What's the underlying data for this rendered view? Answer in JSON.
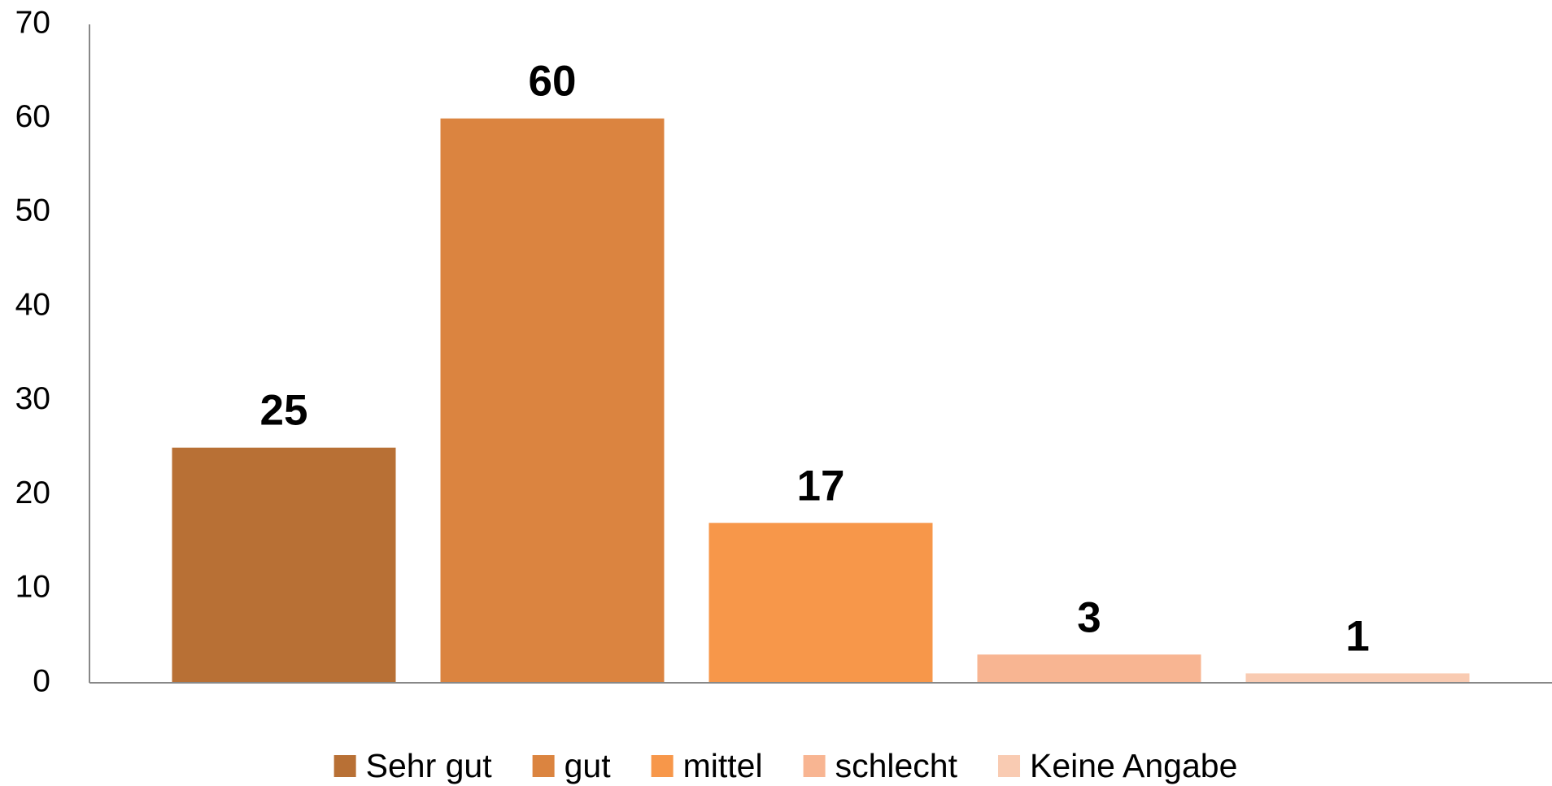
{
  "chart_data": {
    "type": "bar",
    "categories": [
      "Sehr gut",
      "gut",
      "mittel",
      "schlecht",
      "Keine Angabe"
    ],
    "values": [
      25,
      60,
      17,
      3,
      1
    ],
    "colors": [
      "#B87035",
      "#DB8440",
      "#F7974A",
      "#F8B592",
      "#F9CBB2"
    ],
    "ylim": [
      0,
      70
    ],
    "yticks": [
      0,
      10,
      20,
      30,
      40,
      50,
      60,
      70
    ],
    "grid": false,
    "legend": "bottom"
  }
}
